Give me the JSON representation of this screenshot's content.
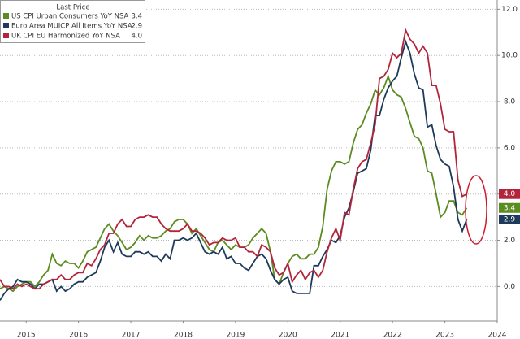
{
  "chart_data": {
    "type": "line",
    "legend_title": "Last Price",
    "legend": "top-left",
    "grid": true,
    "xlim": [
      2015,
      2024.5
    ],
    "xticks": [
      {
        "value": 2015.5,
        "label": "2015"
      },
      {
        "value": 2016.5,
        "label": "2016"
      },
      {
        "value": 2017.5,
        "label": "2017"
      },
      {
        "value": 2018.5,
        "label": "2018"
      },
      {
        "value": 2019.5,
        "label": "2019"
      },
      {
        "value": 2020.5,
        "label": "2020"
      },
      {
        "value": 2021.5,
        "label": "2021"
      },
      {
        "value": 2022.5,
        "label": "2022"
      },
      {
        "value": 2023.5,
        "label": "2023"
      },
      {
        "value": 2024.5,
        "label": "2024"
      }
    ],
    "ylim": [
      -1.5,
      12.4
    ],
    "yticks": [
      {
        "value": 0,
        "label": "0.0"
      },
      {
        "value": 2,
        "label": "2.0"
      },
      {
        "value": 4,
        "label": "4.0"
      },
      {
        "value": 6,
        "label": "6.0"
      },
      {
        "value": 8,
        "label": "8.0"
      },
      {
        "value": 10,
        "label": "10.0"
      },
      {
        "value": 12,
        "label": "12.0"
      }
    ],
    "x": [
      2015.0,
      2015.083,
      2015.167,
      2015.25,
      2015.333,
      2015.417,
      2015.5,
      2015.583,
      2015.667,
      2015.75,
      2015.833,
      2015.917,
      2016.0,
      2016.083,
      2016.167,
      2016.25,
      2016.333,
      2016.417,
      2016.5,
      2016.583,
      2016.667,
      2016.75,
      2016.833,
      2016.917,
      2017.0,
      2017.083,
      2017.167,
      2017.25,
      2017.333,
      2017.417,
      2017.5,
      2017.583,
      2017.667,
      2017.75,
      2017.833,
      2017.917,
      2018.0,
      2018.083,
      2018.167,
      2018.25,
      2018.333,
      2018.417,
      2018.5,
      2018.583,
      2018.667,
      2018.75,
      2018.833,
      2018.917,
      2019.0,
      2019.083,
      2019.167,
      2019.25,
      2019.333,
      2019.417,
      2019.5,
      2019.583,
      2019.667,
      2019.75,
      2019.833,
      2019.917,
      2020.0,
      2020.083,
      2020.167,
      2020.25,
      2020.333,
      2020.417,
      2020.5,
      2020.583,
      2020.667,
      2020.75,
      2020.833,
      2020.917,
      2021.0,
      2021.083,
      2021.167,
      2021.25,
      2021.333,
      2021.417,
      2021.5,
      2021.583,
      2021.667,
      2021.75,
      2021.833,
      2021.917,
      2022.0,
      2022.083,
      2022.167,
      2022.25,
      2022.333,
      2022.417,
      2022.5,
      2022.583,
      2022.667,
      2022.75,
      2022.833,
      2022.917,
      2023.0,
      2023.083,
      2023.167,
      2023.25,
      2023.333,
      2023.417,
      2023.5,
      2023.583,
      2023.667,
      2023.75,
      2023.833,
      2023.917
    ],
    "series": [
      {
        "name": "US CPI Urban Consumers YoY NSA",
        "color": "#5b8c1f",
        "last_label": "3.4",
        "values": [
          -0.1,
          0.0,
          -0.1,
          -0.2,
          0.0,
          0.1,
          0.2,
          0.2,
          0.0,
          0.2,
          0.5,
          0.7,
          1.4,
          1.0,
          0.9,
          1.1,
          1.0,
          1.0,
          0.8,
          1.1,
          1.5,
          1.6,
          1.7,
          2.1,
          2.5,
          2.7,
          2.4,
          2.2,
          1.9,
          1.6,
          1.7,
          1.9,
          2.2,
          2.0,
          2.2,
          2.1,
          2.1,
          2.2,
          2.4,
          2.5,
          2.8,
          2.9,
          2.9,
          2.7,
          2.3,
          2.5,
          2.2,
          1.9,
          1.6,
          1.5,
          1.9,
          2.0,
          1.8,
          1.6,
          1.8,
          1.7,
          1.7,
          1.8,
          2.1,
          2.3,
          2.5,
          2.3,
          1.5,
          0.3,
          0.1,
          0.6,
          1.0,
          1.3,
          1.4,
          1.2,
          1.2,
          1.4,
          1.4,
          1.7,
          2.6,
          4.2,
          5.0,
          5.4,
          5.4,
          5.3,
          5.4,
          6.2,
          6.8,
          7.0,
          7.5,
          7.9,
          8.5,
          8.3,
          8.6,
          9.1,
          8.5,
          8.3,
          8.2,
          7.7,
          7.1,
          6.5,
          6.4,
          6.0,
          5.0,
          4.9,
          4.0,
          3.0,
          3.2,
          3.7,
          3.7,
          3.2,
          3.1,
          3.4
        ]
      },
      {
        "name": "Euro Area MUICP All Items YoY NSA",
        "color": "#1e3a5a",
        "last_label": "2.9",
        "values": [
          -0.6,
          -0.3,
          -0.1,
          0.0,
          0.3,
          0.2,
          0.2,
          0.1,
          -0.1,
          0.1,
          0.1,
          0.2,
          0.3,
          -0.2,
          0.0,
          -0.2,
          -0.1,
          0.1,
          0.2,
          0.2,
          0.4,
          0.5,
          0.6,
          1.1,
          1.7,
          2.0,
          1.5,
          1.9,
          1.4,
          1.3,
          1.3,
          1.5,
          1.5,
          1.4,
          1.5,
          1.3,
          1.3,
          1.1,
          1.4,
          1.2,
          2.0,
          2.0,
          2.1,
          2.0,
          2.1,
          2.3,
          1.9,
          1.5,
          1.4,
          1.5,
          1.4,
          1.7,
          1.2,
          1.3,
          1.0,
          1.0,
          0.8,
          0.7,
          1.0,
          1.3,
          1.4,
          1.2,
          0.7,
          0.3,
          0.1,
          0.3,
          0.4,
          -0.2,
          -0.3,
          -0.3,
          -0.3,
          -0.3,
          0.9,
          0.9,
          1.3,
          1.6,
          2.0,
          1.9,
          2.2,
          3.0,
          3.4,
          4.1,
          4.9,
          5.0,
          5.1,
          5.9,
          7.4,
          7.4,
          8.1,
          8.6,
          8.9,
          9.1,
          9.9,
          10.6,
          10.1,
          9.2,
          8.6,
          8.5,
          6.9,
          7.0,
          6.1,
          5.5,
          5.3,
          5.2,
          4.3,
          2.9,
          2.4,
          2.9
        ]
      },
      {
        "name": "UK CPI EU Harmonized YoY NSA",
        "color": "#b3243b",
        "last_label": "4.0",
        "values": [
          0.3,
          0.0,
          0.0,
          -0.1,
          0.1,
          0.0,
          0.1,
          0.0,
          -0.1,
          -0.1,
          0.1,
          0.2,
          0.3,
          0.3,
          0.5,
          0.3,
          0.3,
          0.5,
          0.6,
          0.6,
          1.0,
          0.9,
          1.2,
          1.6,
          1.8,
          2.3,
          2.3,
          2.7,
          2.9,
          2.6,
          2.6,
          2.9,
          3.0,
          3.0,
          3.1,
          3.0,
          3.0,
          2.7,
          2.5,
          2.4,
          2.4,
          2.4,
          2.5,
          2.7,
          2.4,
          2.4,
          2.3,
          2.1,
          1.8,
          1.9,
          1.9,
          2.1,
          2.0,
          2.0,
          2.1,
          1.7,
          1.7,
          1.5,
          1.5,
          1.3,
          1.8,
          1.7,
          1.5,
          0.8,
          0.5,
          0.6,
          1.0,
          0.2,
          0.5,
          0.7,
          0.3,
          0.6,
          0.7,
          0.4,
          0.7,
          1.5,
          2.1,
          2.5,
          2.0,
          3.2,
          3.1,
          4.2,
          5.1,
          5.4,
          5.5,
          6.2,
          7.0,
          9.0,
          9.1,
          9.4,
          10.1,
          9.9,
          10.1,
          11.1,
          10.7,
          10.5,
          10.1,
          10.4,
          10.1,
          8.7,
          8.7,
          7.9,
          6.8,
          6.7,
          6.7,
          4.6,
          3.9,
          4.0
        ]
      }
    ]
  }
}
